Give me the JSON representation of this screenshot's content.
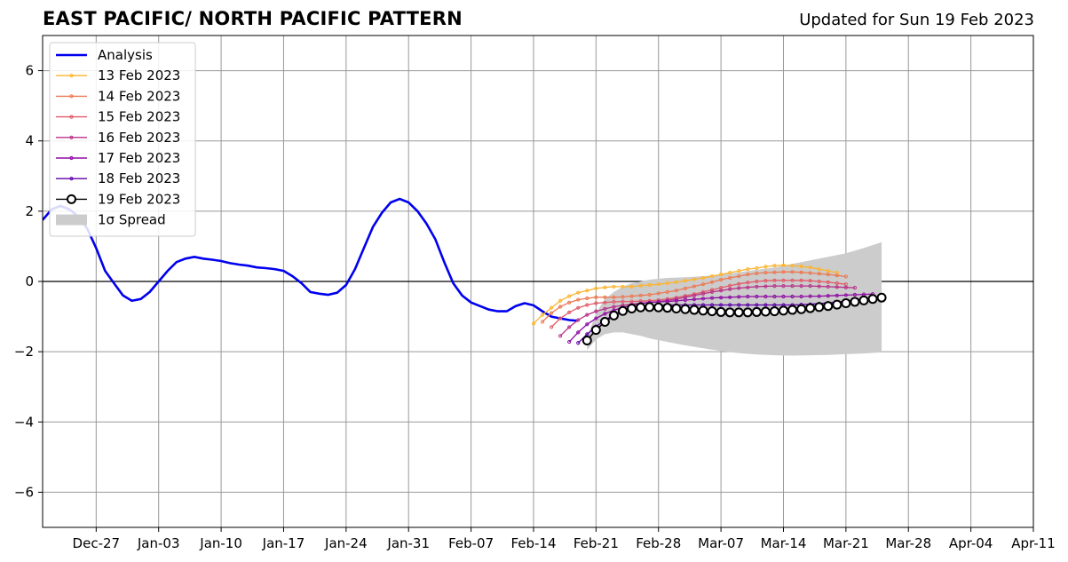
{
  "header": {
    "title": "EAST PACIFIC/ NORTH PACIFIC PATTERN",
    "updated": "Updated for Sun 19 Feb 2023"
  },
  "chart_data": {
    "type": "line",
    "title": "EAST PACIFIC/ NORTH PACIFIC PATTERN",
    "xlabel": "",
    "ylabel": "",
    "x_start": "2022-12-21",
    "xlim": [
      0,
      111
    ],
    "ylim": [
      -7,
      7
    ],
    "x_ticks": [
      {
        "day": 6,
        "label": "Dec-27"
      },
      {
        "day": 13,
        "label": "Jan-03"
      },
      {
        "day": 20,
        "label": "Jan-10"
      },
      {
        "day": 27,
        "label": "Jan-17"
      },
      {
        "day": 34,
        "label": "Jan-24"
      },
      {
        "day": 41,
        "label": "Jan-31"
      },
      {
        "day": 48,
        "label": "Feb-07"
      },
      {
        "day": 55,
        "label": "Feb-14"
      },
      {
        "day": 62,
        "label": "Feb-21"
      },
      {
        "day": 69,
        "label": "Feb-28"
      },
      {
        "day": 76,
        "label": "Mar-07"
      },
      {
        "day": 83,
        "label": "Mar-14"
      },
      {
        "day": 90,
        "label": "Mar-21"
      },
      {
        "day": 97,
        "label": "Mar-28"
      },
      {
        "day": 104,
        "label": "Apr-04"
      },
      {
        "day": 111,
        "label": "Apr-11"
      }
    ],
    "y_ticks": [
      {
        "value": -6,
        "label": "−6"
      },
      {
        "value": -4,
        "label": "−4"
      },
      {
        "value": -2,
        "label": "−2"
      },
      {
        "value": 0,
        "label": "0"
      },
      {
        "value": 2,
        "label": "2"
      },
      {
        "value": 4,
        "label": "4"
      },
      {
        "value": 6,
        "label": "6"
      }
    ],
    "grid": true,
    "legend_position": "top-left",
    "analysis": {
      "name": "Analysis",
      "color": "#0000ee",
      "x": [
        0,
        1,
        2,
        3,
        4,
        5,
        6,
        7,
        8,
        9,
        10,
        11,
        12,
        13,
        14,
        15,
        16,
        17,
        18,
        19,
        20,
        21,
        22,
        23,
        24,
        25,
        26,
        27,
        28,
        29,
        30,
        31,
        32,
        33,
        34,
        35,
        36,
        37,
        38,
        39,
        40,
        41,
        42,
        43,
        44,
        45,
        46,
        47,
        48,
        49,
        50,
        51,
        52,
        53,
        54,
        55,
        56,
        57,
        58,
        59,
        60
      ],
      "y": [
        1.75,
        2.05,
        2.15,
        2.05,
        1.85,
        1.5,
        0.95,
        0.3,
        -0.05,
        -0.4,
        -0.55,
        -0.5,
        -0.3,
        0.0,
        0.3,
        0.55,
        0.65,
        0.7,
        0.65,
        0.62,
        0.58,
        0.52,
        0.48,
        0.45,
        0.4,
        0.38,
        0.35,
        0.3,
        0.15,
        -0.05,
        -0.3,
        -0.35,
        -0.38,
        -0.32,
        -0.1,
        0.35,
        0.95,
        1.55,
        1.95,
        2.25,
        2.35,
        2.25,
        2.0,
        1.65,
        1.2,
        0.55,
        -0.05,
        -0.4,
        -0.6,
        -0.7,
        -0.8,
        -0.85,
        -0.85,
        -0.7,
        -0.62,
        -0.68,
        -0.85,
        -1.0,
        -1.05,
        -1.1,
        -1.12
      ]
    },
    "spread": {
      "name": "1σ Spread",
      "color": "#cccccc",
      "x": [
        61,
        62,
        63,
        64,
        65,
        66,
        67,
        68,
        70,
        72,
        74,
        76,
        78,
        80,
        82,
        84,
        86,
        88,
        90,
        92,
        94
      ],
      "upper": [
        -1.6,
        -0.9,
        -0.5,
        -0.3,
        -0.15,
        -0.05,
        0.0,
        0.05,
        0.1,
        0.12,
        0.15,
        0.2,
        0.26,
        0.33,
        0.4,
        0.5,
        0.6,
        0.7,
        0.8,
        0.95,
        1.12
      ],
      "lower": [
        -1.95,
        -1.65,
        -1.5,
        -1.45,
        -1.45,
        -1.5,
        -1.55,
        -1.62,
        -1.72,
        -1.82,
        -1.9,
        -1.98,
        -2.04,
        -2.08,
        -2.1,
        -2.11,
        -2.1,
        -2.09,
        -2.07,
        -2.05,
        -2.02
      ]
    },
    "series": [
      {
        "name": "13 Feb 2023",
        "color": "#fdb42f",
        "x": [
          55,
          56,
          57,
          58,
          59,
          60,
          61,
          62,
          63,
          64,
          65,
          66,
          67,
          68,
          69,
          70,
          71,
          72,
          73,
          74,
          75,
          76,
          77,
          78,
          79,
          80,
          81,
          82,
          83,
          84,
          85,
          86,
          87,
          88,
          89
        ],
        "y": [
          -1.2,
          -0.95,
          -0.75,
          -0.55,
          -0.42,
          -0.32,
          -0.26,
          -0.2,
          -0.17,
          -0.15,
          -0.15,
          -0.15,
          -0.12,
          -0.1,
          -0.08,
          -0.05,
          -0.02,
          0.02,
          0.06,
          0.1,
          0.15,
          0.2,
          0.25,
          0.3,
          0.35,
          0.38,
          0.42,
          0.45,
          0.46,
          0.45,
          0.43,
          0.4,
          0.35,
          0.3,
          0.25
        ]
      },
      {
        "name": "14 Feb 2023",
        "color": "#ed7953",
        "x": [
          56,
          57,
          58,
          59,
          60,
          61,
          62,
          63,
          64,
          65,
          66,
          67,
          68,
          69,
          70,
          71,
          72,
          73,
          74,
          75,
          76,
          77,
          78,
          79,
          80,
          81,
          82,
          83,
          84,
          85,
          86,
          87,
          88,
          89,
          90
        ],
        "y": [
          -1.15,
          -0.9,
          -0.72,
          -0.6,
          -0.52,
          -0.48,
          -0.45,
          -0.45,
          -0.45,
          -0.44,
          -0.42,
          -0.4,
          -0.38,
          -0.34,
          -0.3,
          -0.26,
          -0.2,
          -0.14,
          -0.08,
          -0.02,
          0.05,
          0.1,
          0.15,
          0.2,
          0.23,
          0.25,
          0.26,
          0.27,
          0.27,
          0.26,
          0.24,
          0.22,
          0.2,
          0.17,
          0.14
        ]
      },
      {
        "name": "15 Feb 2023",
        "color": "#e05c6a",
        "x": [
          57,
          58,
          59,
          60,
          61,
          62,
          63,
          64,
          65,
          66,
          67,
          68,
          69,
          70,
          71,
          72,
          73,
          74,
          75,
          76,
          77,
          78,
          79,
          80,
          81,
          82,
          83,
          84,
          85,
          86,
          87,
          88,
          89,
          90
        ],
        "y": [
          -1.3,
          -1.05,
          -0.88,
          -0.75,
          -0.67,
          -0.62,
          -0.6,
          -0.58,
          -0.57,
          -0.57,
          -0.56,
          -0.55,
          -0.53,
          -0.5,
          -0.46,
          -0.41,
          -0.36,
          -0.3,
          -0.24,
          -0.18,
          -0.12,
          -0.07,
          -0.03,
          0.0,
          0.02,
          0.03,
          0.03,
          0.03,
          0.03,
          0.02,
          0.0,
          -0.02,
          -0.05,
          -0.08
        ]
      },
      {
        "name": "16 Feb 2023",
        "color": "#b83289",
        "x": [
          58,
          59,
          60,
          61,
          62,
          63,
          64,
          65,
          66,
          67,
          68,
          69,
          70,
          71,
          72,
          73,
          74,
          75,
          76,
          77,
          78,
          79,
          80,
          81,
          82,
          83,
          84,
          85,
          86,
          87,
          88,
          89,
          90,
          91
        ],
        "y": [
          -1.55,
          -1.3,
          -1.1,
          -0.95,
          -0.85,
          -0.78,
          -0.72,
          -0.68,
          -0.65,
          -0.62,
          -0.6,
          -0.57,
          -0.54,
          -0.5,
          -0.45,
          -0.4,
          -0.35,
          -0.3,
          -0.26,
          -0.22,
          -0.19,
          -0.17,
          -0.15,
          -0.14,
          -0.13,
          -0.13,
          -0.13,
          -0.13,
          -0.13,
          -0.14,
          -0.15,
          -0.16,
          -0.17,
          -0.18
        ]
      },
      {
        "name": "17 Feb 2023",
        "color": "#8f0da4",
        "x": [
          59,
          60,
          61,
          62,
          63,
          64,
          65,
          66,
          67,
          68,
          69,
          70,
          71,
          72,
          73,
          74,
          75,
          76,
          77,
          78,
          79,
          80,
          81,
          82,
          83,
          84,
          85,
          86,
          87,
          88,
          89,
          90,
          91,
          92,
          93
        ],
        "y": [
          -1.72,
          -1.45,
          -1.22,
          -1.05,
          -0.92,
          -0.82,
          -0.74,
          -0.68,
          -0.63,
          -0.6,
          -0.58,
          -0.57,
          -0.55,
          -0.53,
          -0.51,
          -0.49,
          -0.47,
          -0.46,
          -0.45,
          -0.44,
          -0.43,
          -0.43,
          -0.43,
          -0.43,
          -0.43,
          -0.43,
          -0.43,
          -0.42,
          -0.42,
          -0.41,
          -0.4,
          -0.39,
          -0.38,
          -0.37,
          -0.36
        ]
      },
      {
        "name": "18 Feb 2023",
        "color": "#5c01a6",
        "x": [
          60,
          61,
          62,
          63,
          64,
          65,
          66,
          67,
          68,
          69,
          70,
          71,
          72,
          73,
          74,
          75,
          76,
          77,
          78,
          79,
          80,
          81,
          82,
          83,
          84,
          85,
          86,
          87,
          88,
          89,
          90,
          91,
          92,
          93,
          94
        ],
        "y": [
          -1.75,
          -1.5,
          -1.28,
          -1.1,
          -0.95,
          -0.85,
          -0.78,
          -0.73,
          -0.7,
          -0.68,
          -0.67,
          -0.67,
          -0.67,
          -0.67,
          -0.67,
          -0.67,
          -0.67,
          -0.67,
          -0.67,
          -0.67,
          -0.67,
          -0.67,
          -0.67,
          -0.67,
          -0.67,
          -0.66,
          -0.65,
          -0.63,
          -0.61,
          -0.59,
          -0.56,
          -0.53,
          -0.5,
          -0.47,
          -0.44
        ]
      },
      {
        "name": "19 Feb 2023",
        "color": "#000000",
        "marker": "open-circle",
        "x": [
          61,
          62,
          63,
          64,
          65,
          66,
          67,
          68,
          69,
          70,
          71,
          72,
          73,
          74,
          75,
          76,
          77,
          78,
          79,
          80,
          81,
          82,
          83,
          84,
          85,
          86,
          87,
          88,
          89,
          90,
          91,
          92,
          93,
          94
        ],
        "y": [
          -1.68,
          -1.38,
          -1.15,
          -0.97,
          -0.84,
          -0.77,
          -0.74,
          -0.73,
          -0.74,
          -0.75,
          -0.77,
          -0.79,
          -0.81,
          -0.83,
          -0.85,
          -0.87,
          -0.88,
          -0.88,
          -0.88,
          -0.87,
          -0.86,
          -0.85,
          -0.83,
          -0.81,
          -0.79,
          -0.76,
          -0.73,
          -0.7,
          -0.66,
          -0.62,
          -0.58,
          -0.54,
          -0.5,
          -0.46
        ]
      }
    ]
  }
}
